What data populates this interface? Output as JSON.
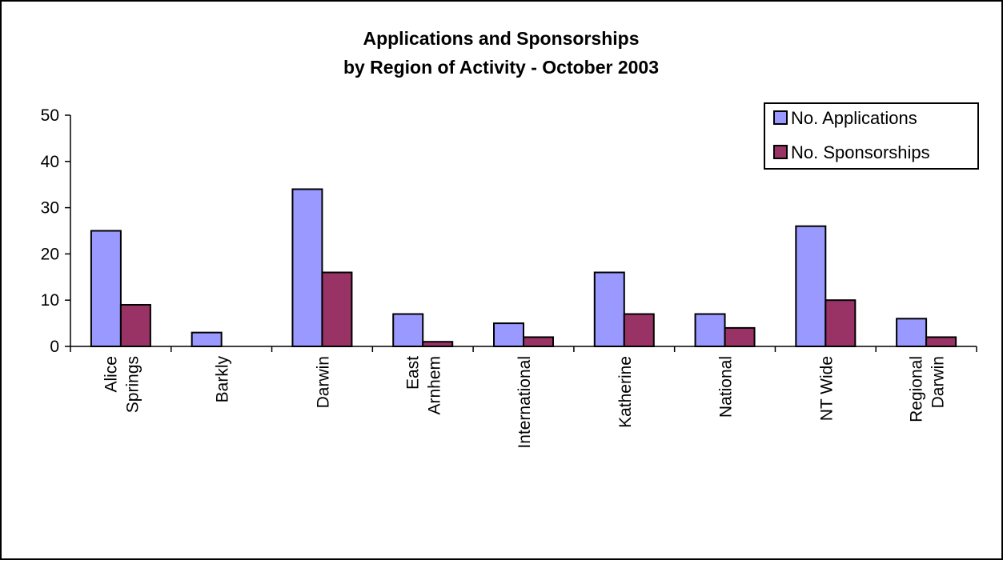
{
  "chart_data": {
    "type": "bar",
    "title": "Applications and Sponsorships",
    "subtitle": "by Region of Activity - October 2003",
    "xlabel": "",
    "ylabel": "",
    "ylim": [
      0,
      50
    ],
    "yticks": [
      0,
      10,
      20,
      30,
      40,
      50
    ],
    "grid": false,
    "legend_position": "top-right",
    "categories": [
      [
        "Alice",
        "Springs"
      ],
      [
        "Barkly"
      ],
      [
        "Darwin"
      ],
      [
        "East",
        "Arnhem"
      ],
      [
        "International"
      ],
      [
        "Katherine"
      ],
      [
        "National"
      ],
      [
        "NT Wide"
      ],
      [
        "Regional",
        "Darwin"
      ]
    ],
    "series": [
      {
        "name": "No. Applications",
        "color": "#9999ff",
        "values": [
          25,
          3,
          34,
          7,
          5,
          16,
          7,
          26,
          6
        ]
      },
      {
        "name": "No. Sponsorships",
        "color": "#993366",
        "values": [
          9,
          0,
          16,
          1,
          2,
          7,
          4,
          10,
          2
        ]
      }
    ]
  }
}
